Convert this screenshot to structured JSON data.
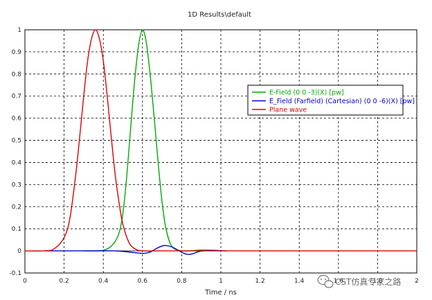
{
  "chart_data": {
    "type": "line",
    "title": "1D Results\\default",
    "xlabel": "Time / ns",
    "ylabel": "",
    "xlim": [
      0,
      2
    ],
    "ylim": [
      -0.1,
      1
    ],
    "xticks": [
      "0",
      "0.2",
      "0.4",
      "0.6",
      "0.8",
      "1",
      "1.2",
      "1.4",
      "1.6",
      "1.8",
      "2"
    ],
    "yticks": [
      "-0.1",
      "0",
      "0.1",
      "0.2",
      "0.3",
      "0.4",
      "0.5",
      "0.6",
      "0.7",
      "0.8",
      "0.9",
      "1"
    ],
    "grid": true,
    "legend_position": "right",
    "series": [
      {
        "name": "E-Field (0 0 -3)(X) [pw]",
        "color": "#00aa00",
        "x": [
          0.3,
          0.4,
          0.45,
          0.48,
          0.5,
          0.52,
          0.54,
          0.56,
          0.58,
          0.6,
          0.62,
          0.64,
          0.66,
          0.68,
          0.7,
          0.72,
          0.75,
          0.8,
          0.85,
          0.9,
          0.95,
          1.0
        ],
        "y": [
          0.0,
          0.003,
          0.03,
          0.08,
          0.17,
          0.34,
          0.56,
          0.77,
          0.93,
          1.0,
          0.94,
          0.79,
          0.6,
          0.4,
          0.22,
          0.1,
          0.02,
          0.0,
          0.001,
          0.004,
          0.003,
          0.001
        ]
      },
      {
        "name": "E_Field (Farfield) (Cartesian) (0 0 -6)(X) [pw]",
        "color": "#0000cc",
        "x": [
          0.1,
          0.3,
          0.45,
          0.52,
          0.57,
          0.61,
          0.64,
          0.67,
          0.7,
          0.72,
          0.75,
          0.78,
          0.8,
          0.82,
          0.84,
          0.86,
          0.88,
          0.91,
          0.95,
          1.0,
          1.03
        ],
        "y": [
          0.0,
          0.0,
          0.0,
          -0.004,
          -0.009,
          -0.011,
          -0.005,
          0.01,
          0.022,
          0.024,
          0.018,
          0.004,
          -0.006,
          -0.014,
          -0.016,
          -0.012,
          -0.005,
          0.0,
          0.002,
          0.001,
          0.0
        ]
      },
      {
        "name": "Plane wave",
        "color": "#dd0000",
        "x": [
          0.0,
          0.1,
          0.15,
          0.2,
          0.23,
          0.26,
          0.28,
          0.3,
          0.32,
          0.34,
          0.36,
          0.38,
          0.4,
          0.42,
          0.44,
          0.46,
          0.48,
          0.5,
          0.53,
          0.56,
          0.6,
          0.7,
          1.0,
          2.0
        ],
        "y": [
          0.0,
          0.0,
          0.01,
          0.06,
          0.15,
          0.35,
          0.52,
          0.7,
          0.86,
          0.96,
          1.0,
          0.96,
          0.86,
          0.7,
          0.52,
          0.35,
          0.22,
          0.12,
          0.04,
          0.01,
          0.0,
          0.0,
          0.0,
          0.0
        ]
      }
    ]
  },
  "watermark": {
    "text": "CST仿真专家之路",
    "icon": "wechat-icon"
  }
}
